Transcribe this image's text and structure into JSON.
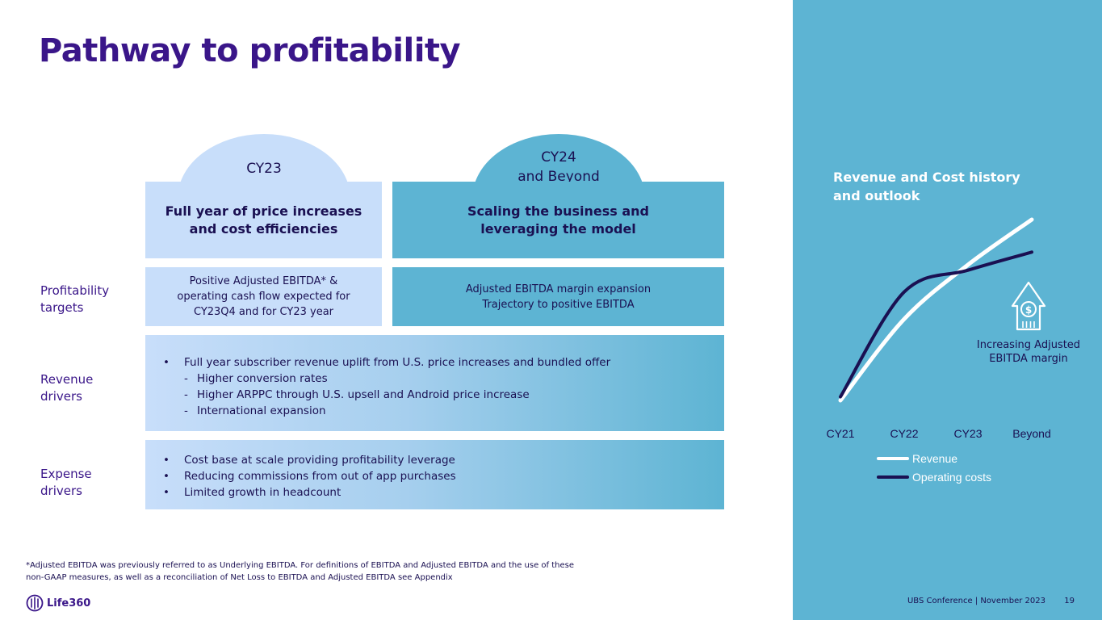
{
  "title": "Pathway to profitability",
  "columns": {
    "cy23": {
      "tab": "CY23",
      "heading": "Full year of price increases and cost efficiencies",
      "target": "Positive Adjusted EBITDA* &\noperating cash flow expected for\nCY23Q4 and for CY23 year"
    },
    "cy24": {
      "tab_line1": "CY24",
      "tab_line2": "and Beyond",
      "heading": "Scaling the business and leveraging the model",
      "target": "Adjusted EBITDA margin expansion\nTrajectory to positive EBITDA"
    }
  },
  "rows": {
    "profitability": "Profitability targets",
    "revenue": "Revenue drivers",
    "expense": "Expense drivers"
  },
  "revenue_drivers": {
    "main": "Full year subscriber revenue uplift from U.S. price increases and bundled offer",
    "subs": [
      "Higher conversion rates",
      "Higher ARPPC through U.S. upsell and Android price increase",
      "International expansion"
    ]
  },
  "expense_drivers": [
    "Cost base at scale providing profitability leverage",
    "Reducing commissions from out of app purchases",
    "Limited growth in headcount"
  ],
  "right_panel": {
    "title": "Revenue and Cost history and outlook",
    "annotation": "Increasing Adjusted EBITDA margin",
    "icon": "house-dollar-icon"
  },
  "chart_data": {
    "type": "line",
    "categories": [
      "CY21",
      "CY22",
      "CY23",
      "Beyond"
    ],
    "series": [
      {
        "name": "Revenue",
        "color": "#ffffff",
        "values": [
          0.0,
          0.45,
          0.75,
          1.0
        ]
      },
      {
        "name": "Operating costs",
        "color": "#1a1052",
        "values": [
          0.02,
          0.6,
          0.72,
          0.82
        ]
      }
    ],
    "legend": "bottom",
    "grid": false
  },
  "footer": {
    "event": "UBS Conference |  November 2023",
    "page": "19",
    "footnote": "*Adjusted EBITDA was previously referred to as Underlying EBITDA. For definitions of EBITDA and Adjusted EBITDA and the use of these non-GAAP measures, as well as a reconciliation of Net Loss to EBITDA and Adjusted EBITDA see Appendix",
    "logo": "Life360"
  },
  "colors": {
    "title": "#3a1689",
    "light_blue": "#c8defa",
    "teal": "#5db4d3",
    "navy": "#1a1052"
  }
}
